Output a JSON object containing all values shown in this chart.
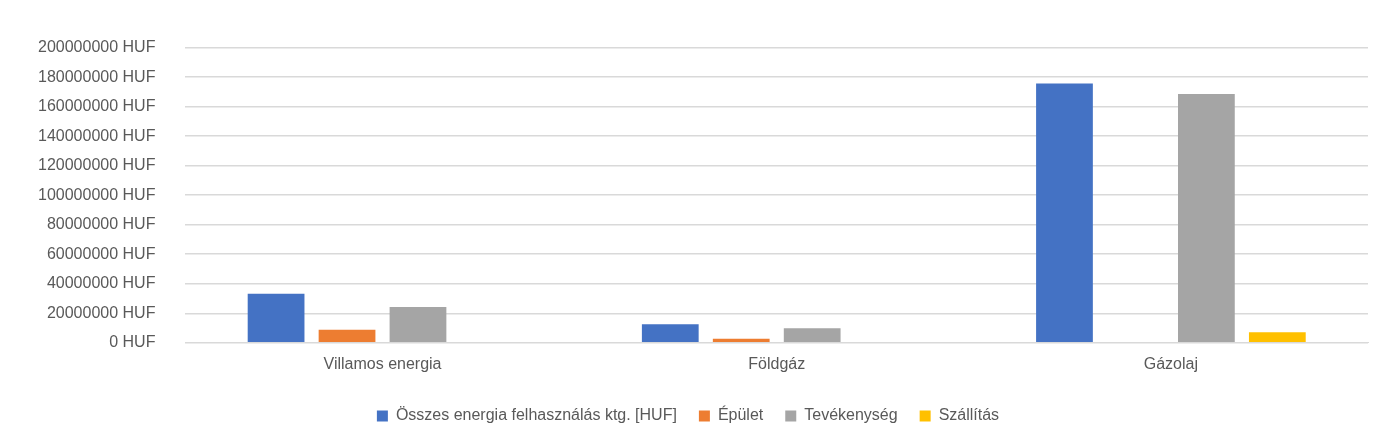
{
  "chart_data": {
    "type": "bar",
    "categories": [
      "Villamos energia",
      "Földgáz",
      "Gázolaj"
    ],
    "series": [
      {
        "name": "Összes energia felhasználás ktg. [HUF]",
        "color": "#4472c4",
        "values": [
          33300000,
          12500000,
          175600000
        ]
      },
      {
        "name": "Épület",
        "color": "#ed7d31",
        "values": [
          8800000,
          2700000,
          0
        ]
      },
      {
        "name": "Tevékenység",
        "color": "#a5a5a5",
        "values": [
          24200000,
          9900000,
          168500000
        ]
      },
      {
        "name": "Szállítás",
        "color": "#ffc000",
        "values": [
          0,
          0,
          7100000
        ]
      }
    ],
    "ylim": [
      0,
      200000000
    ],
    "yticks": [
      {
        "value": 0,
        "label": "0 HUF"
      },
      {
        "value": 20000000,
        "label": "20000000 HUF"
      },
      {
        "value": 40000000,
        "label": "40000000 HUF"
      },
      {
        "value": 60000000,
        "label": "60000000 HUF"
      },
      {
        "value": 80000000,
        "label": "80000000 HUF"
      },
      {
        "value": 100000000,
        "label": "100000000 HUF"
      },
      {
        "value": 120000000,
        "label": "120000000 HUF"
      },
      {
        "value": 140000000,
        "label": "140000000 HUF"
      },
      {
        "value": 160000000,
        "label": "160000000 HUF"
      },
      {
        "value": 180000000,
        "label": "180000000 HUF"
      },
      {
        "value": 200000000,
        "label": "200000000 HUF"
      }
    ],
    "grid": "y",
    "legend": "bottom"
  }
}
